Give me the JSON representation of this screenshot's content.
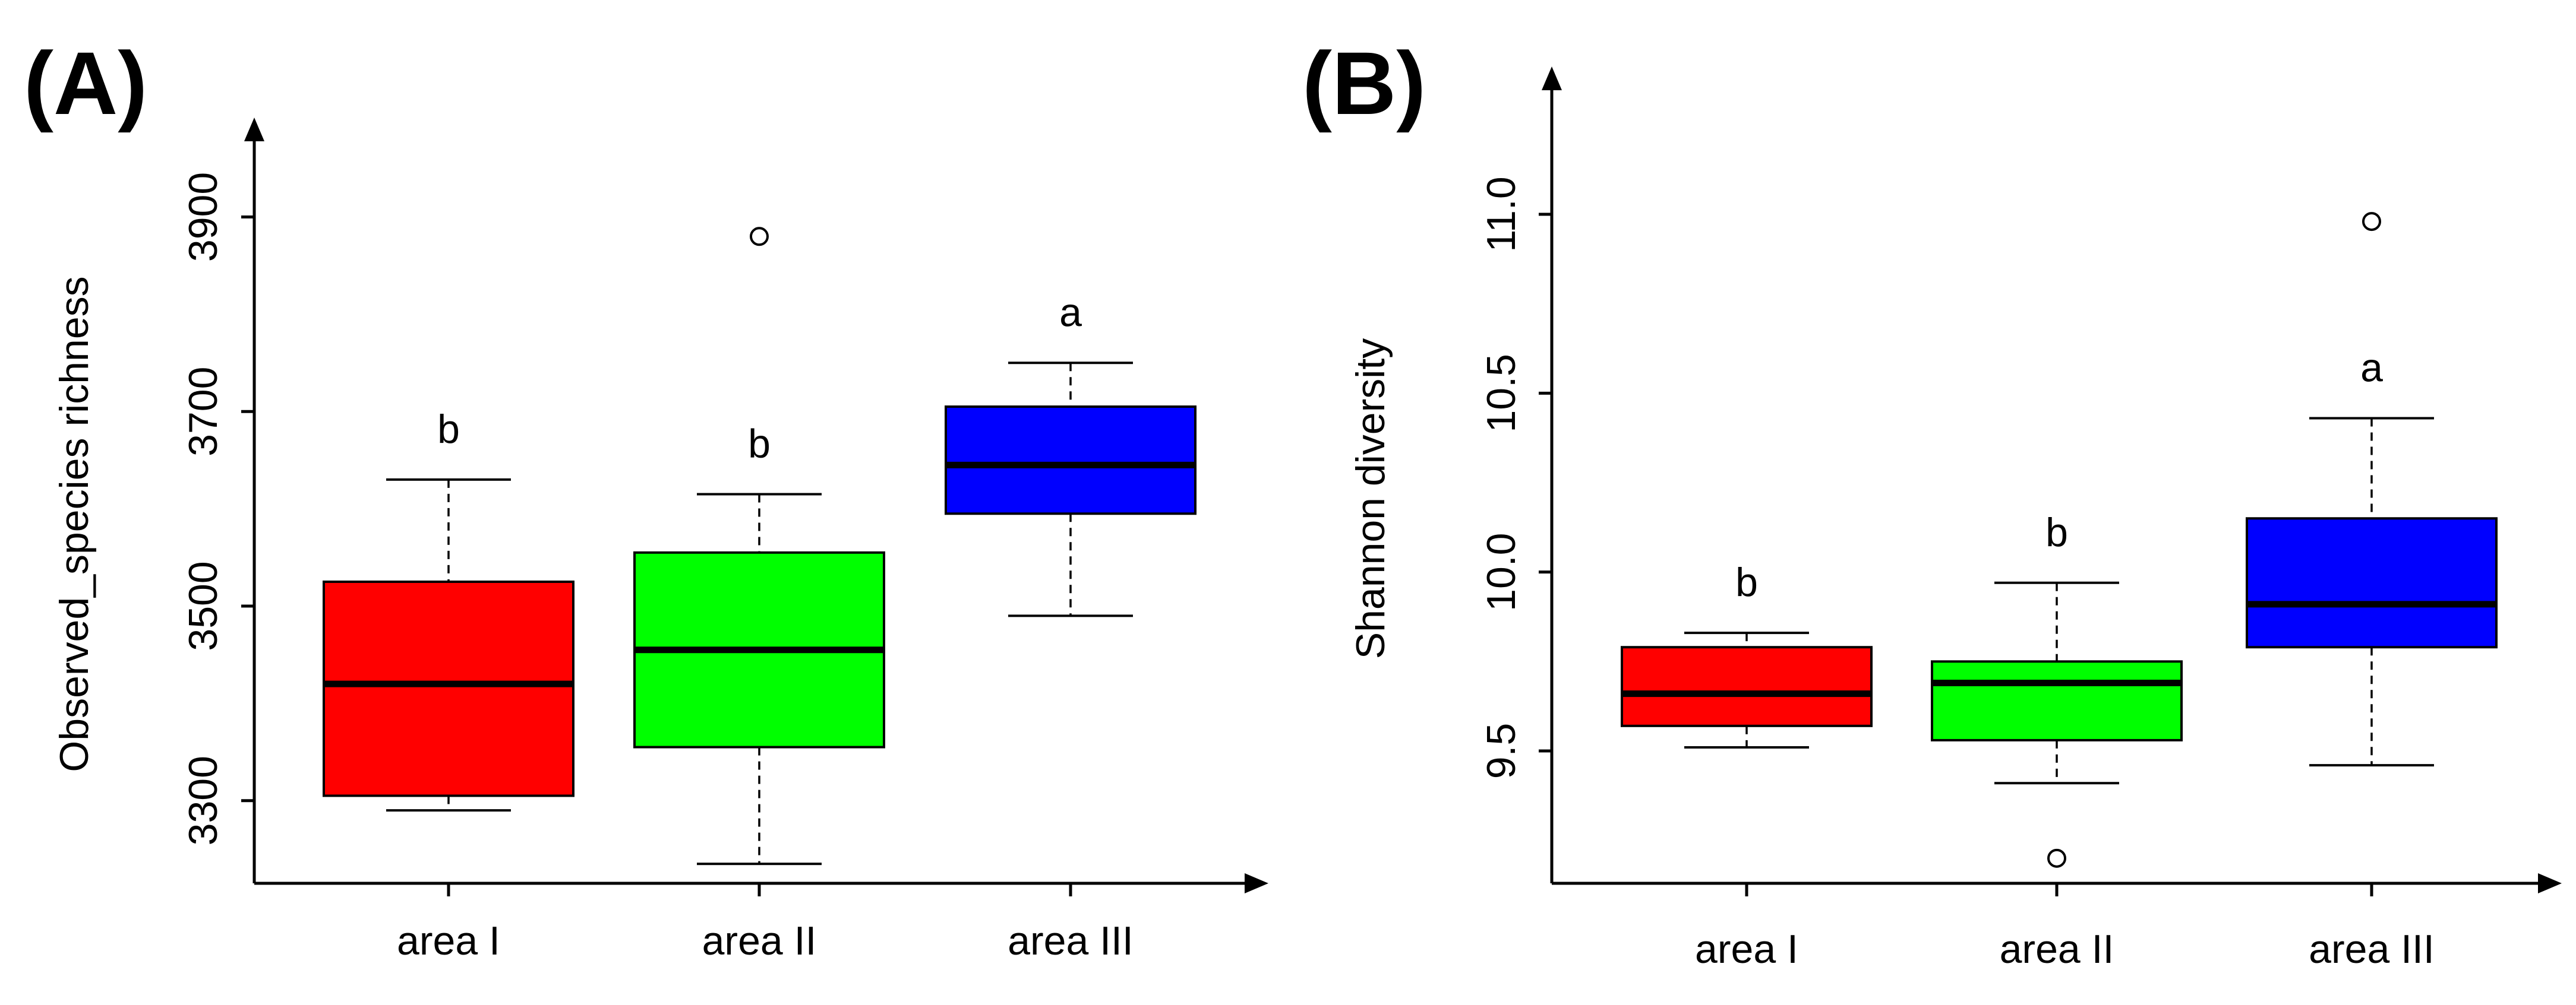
{
  "colors": {
    "area_I": "#ff0000",
    "area_II": "#00ff00",
    "area_III": "#0000ff",
    "axis": "#000000"
  },
  "chart_data": [
    {
      "type": "box",
      "panel_label": "(A)",
      "title": "",
      "xlabel": "",
      "ylabel": "Observed_species richness",
      "ylim": [
        3215,
        3990
      ],
      "yticks": [
        3300,
        3500,
        3700,
        3900
      ],
      "ytick_labels": [
        "3300",
        "3500",
        "3700",
        "3900"
      ],
      "categories": [
        "area I",
        "area II",
        "area III"
      ],
      "boxes": [
        {
          "name": "area I",
          "color": "#ff0000",
          "whisker_low": 3290,
          "q1": 3305,
          "median": 3420,
          "q3": 3525,
          "whisker_high": 3630,
          "outliers": [],
          "group_letter": "b"
        },
        {
          "name": "area II",
          "color": "#00ff00",
          "whisker_low": 3235,
          "q1": 3355,
          "median": 3455,
          "q3": 3555,
          "whisker_high": 3615,
          "outliers": [
            3880
          ],
          "group_letter": "b"
        },
        {
          "name": "area III",
          "color": "#0000ff",
          "whisker_low": 3490,
          "q1": 3595,
          "median": 3645,
          "q3": 3705,
          "whisker_high": 3750,
          "outliers": [],
          "group_letter": "a"
        }
      ]
    },
    {
      "type": "box",
      "panel_label": "(B)",
      "title": "",
      "xlabel": "",
      "ylabel": "Shannon diversity",
      "ylim": [
        9.13,
        11.38
      ],
      "yticks": [
        9.5,
        10.0,
        10.5,
        11.0
      ],
      "ytick_labels": [
        "9.5",
        "10.0",
        "10.5",
        "11.0"
      ],
      "categories": [
        "area I",
        "area II",
        "area III"
      ],
      "boxes": [
        {
          "name": "area I",
          "color": "#ff0000",
          "whisker_low": 9.51,
          "q1": 9.57,
          "median": 9.66,
          "q3": 9.79,
          "whisker_high": 9.83,
          "outliers": [],
          "group_letter": "b"
        },
        {
          "name": "area II",
          "color": "#00ff00",
          "whisker_low": 9.41,
          "q1": 9.53,
          "median": 9.69,
          "q3": 9.75,
          "whisker_high": 9.97,
          "outliers": [
            9.2
          ],
          "group_letter": "b"
        },
        {
          "name": "area III",
          "color": "#0000ff",
          "whisker_low": 9.46,
          "q1": 9.79,
          "median": 9.91,
          "q3": 10.15,
          "whisker_high": 10.43,
          "outliers": [
            10.98
          ],
          "group_letter": "a"
        }
      ]
    }
  ]
}
